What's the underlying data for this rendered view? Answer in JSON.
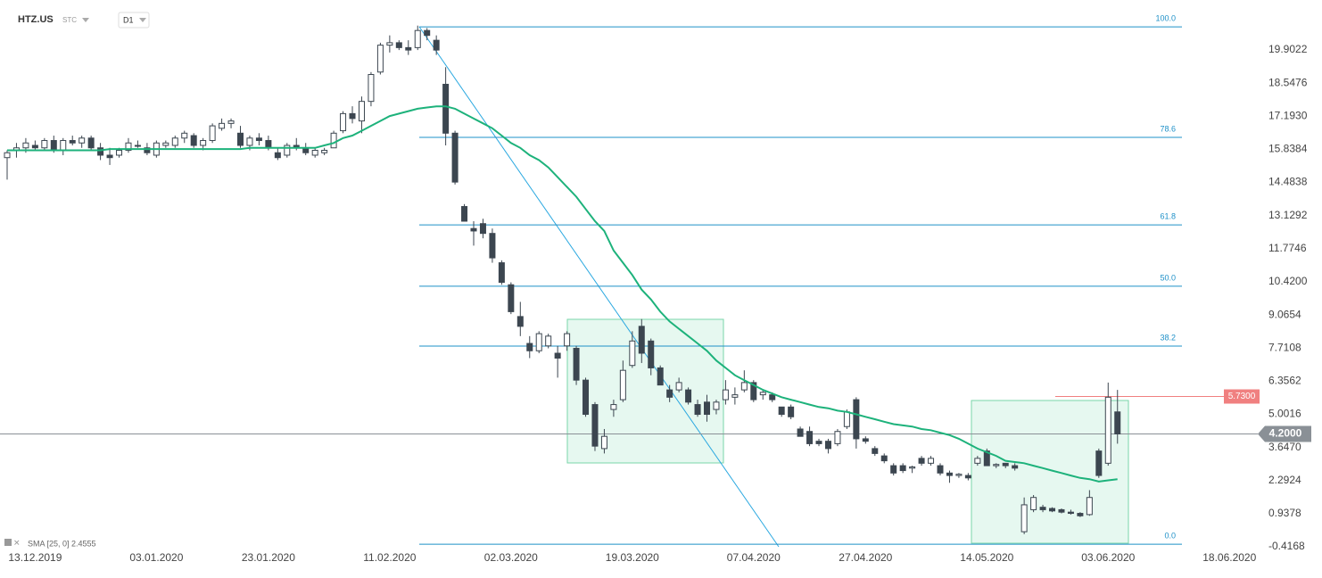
{
  "chart_data": {
    "type": "candlestick",
    "symbol": "HTZ.US",
    "symbol_type": "STC",
    "interval": "D1",
    "categories": [
      null,
      null,
      null,
      "13.12.2019",
      null,
      null,
      null,
      null,
      null,
      null,
      null,
      null,
      null,
      null,
      null,
      null,
      "03.01.2020",
      null,
      null,
      null,
      null,
      null,
      null,
      null,
      null,
      null,
      null,
      null,
      "23.01.2020",
      null,
      null,
      null,
      null,
      null,
      null,
      null,
      null,
      null,
      null,
      null,
      null,
      "11.02.2020",
      null,
      null,
      null,
      null,
      null,
      null,
      null,
      null,
      null,
      null,
      null,
      null,
      "02.03.2020",
      null,
      null,
      null,
      null,
      null,
      null,
      null,
      null,
      null,
      null,
      null,
      null,
      "19.03.2020",
      null,
      null,
      null,
      null,
      null,
      null,
      null,
      null,
      null,
      null,
      null,
      null,
      "07.04.2020",
      null,
      null,
      null,
      null,
      null,
      null,
      null,
      null,
      null,
      null,
      null,
      "27.04.2020",
      null,
      null,
      null,
      null,
      null,
      null,
      null,
      null,
      null,
      null,
      null,
      null,
      "14.05.2020",
      null,
      null,
      null,
      null,
      null,
      null,
      null,
      null,
      null,
      null,
      null,
      null,
      "03.06.2020",
      null,
      null,
      null,
      null,
      null,
      null,
      null,
      null,
      null,
      null,
      null,
      null,
      "18.06.2020"
    ],
    "ohlc": [
      [
        15.5,
        15.8,
        14.6,
        15.7
      ],
      [
        15.8,
        16.1,
        15.5,
        15.9
      ],
      [
        15.9,
        16.3,
        15.7,
        16.1
      ],
      [
        16.0,
        16.2,
        15.8,
        15.9
      ],
      [
        15.9,
        16.3,
        15.8,
        16.2
      ],
      [
        16.2,
        16.4,
        15.7,
        15.8
      ],
      [
        15.8,
        16.3,
        15.6,
        16.2
      ],
      [
        16.2,
        16.4,
        16.0,
        16.1
      ],
      [
        16.1,
        16.4,
        15.9,
        16.3
      ],
      [
        16.3,
        16.4,
        15.8,
        15.9
      ],
      [
        15.9,
        16.1,
        15.4,
        15.6
      ],
      [
        15.6,
        15.9,
        15.2,
        15.5
      ],
      [
        15.6,
        15.9,
        15.5,
        15.8
      ],
      [
        15.8,
        16.3,
        15.7,
        16.1
      ],
      [
        16.0,
        16.2,
        15.9,
        16.0
      ],
      [
        15.9,
        16.1,
        15.6,
        15.7
      ],
      [
        15.6,
        16.2,
        15.5,
        16.1
      ],
      [
        16.0,
        16.2,
        15.9,
        16.1
      ],
      [
        16.0,
        16.4,
        15.9,
        16.3
      ],
      [
        16.3,
        16.6,
        16.1,
        16.5
      ],
      [
        16.4,
        16.5,
        15.9,
        16.0
      ],
      [
        16.0,
        16.3,
        15.8,
        16.2
      ],
      [
        16.2,
        16.9,
        16.1,
        16.8
      ],
      [
        16.7,
        17.1,
        16.6,
        16.9
      ],
      [
        16.9,
        17.1,
        16.7,
        17.0
      ],
      [
        16.5,
        16.8,
        15.9,
        16.0
      ],
      [
        16.0,
        16.4,
        15.8,
        16.3
      ],
      [
        16.3,
        16.5,
        16.0,
        16.2
      ],
      [
        16.2,
        16.4,
        15.8,
        15.9
      ],
      [
        15.7,
        15.9,
        15.4,
        15.5
      ],
      [
        15.6,
        16.1,
        15.5,
        16.0
      ],
      [
        16.0,
        16.3,
        15.8,
        15.9
      ],
      [
        15.9,
        16.1,
        15.6,
        15.7
      ],
      [
        15.6,
        15.9,
        15.5,
        15.8
      ],
      [
        15.7,
        15.9,
        15.6,
        15.8
      ],
      [
        15.9,
        16.6,
        15.9,
        16.5
      ],
      [
        16.6,
        17.4,
        16.5,
        17.3
      ],
      [
        17.3,
        17.6,
        16.9,
        17.1
      ],
      [
        17.0,
        18.0,
        16.5,
        17.8
      ],
      [
        17.8,
        19.0,
        17.6,
        18.9
      ],
      [
        19.0,
        20.2,
        18.9,
        20.1
      ],
      [
        20.1,
        20.5,
        19.8,
        20.2
      ],
      [
        20.2,
        20.3,
        19.9,
        20.0
      ],
      [
        20.0,
        20.3,
        19.7,
        19.9
      ],
      [
        20.0,
        20.9,
        19.9,
        20.7
      ],
      [
        20.7,
        20.8,
        20.3,
        20.5
      ],
      [
        20.3,
        20.5,
        19.7,
        19.9
      ],
      [
        18.5,
        19.2,
        16.0,
        16.5
      ],
      [
        16.5,
        16.6,
        14.4,
        14.5
      ],
      [
        13.5,
        13.6,
        12.9,
        12.9
      ],
      [
        12.6,
        12.9,
        11.9,
        12.5
      ],
      [
        12.8,
        13.0,
        12.2,
        12.4
      ],
      [
        12.4,
        12.6,
        11.2,
        11.4
      ],
      [
        11.2,
        11.3,
        10.3,
        10.4
      ],
      [
        10.3,
        10.4,
        9.1,
        9.2
      ],
      [
        9.0,
        9.6,
        8.2,
        8.6
      ],
      [
        7.9,
        8.2,
        7.3,
        7.6
      ],
      [
        7.6,
        8.4,
        7.5,
        8.3
      ],
      [
        7.8,
        8.3,
        7.7,
        8.2
      ],
      [
        7.5,
        7.8,
        6.5,
        7.3
      ],
      [
        7.8,
        8.4,
        7.6,
        8.3
      ],
      [
        7.7,
        7.8,
        6.2,
        6.4
      ],
      [
        6.4,
        6.5,
        4.9,
        5.0
      ],
      [
        5.4,
        5.5,
        3.5,
        3.7
      ],
      [
        3.6,
        4.4,
        3.4,
        4.1
      ],
      [
        5.2,
        5.6,
        4.9,
        5.4
      ],
      [
        5.6,
        7.2,
        5.5,
        6.8
      ],
      [
        7.0,
        8.4,
        6.9,
        8.0
      ],
      [
        8.6,
        8.9,
        7.1,
        7.5
      ],
      [
        8.0,
        8.1,
        6.6,
        6.9
      ],
      [
        6.9,
        7.0,
        6.2,
        6.2
      ],
      [
        6.0,
        6.2,
        5.5,
        5.7
      ],
      [
        6.0,
        6.5,
        5.9,
        6.3
      ],
      [
        6.0,
        6.1,
        5.4,
        5.5
      ],
      [
        5.4,
        5.6,
        4.9,
        5.0
      ],
      [
        5.5,
        5.8,
        4.7,
        5.0
      ],
      [
        5.2,
        5.6,
        5.0,
        5.5
      ],
      [
        5.6,
        6.4,
        5.4,
        6.0
      ],
      [
        5.7,
        6.1,
        5.4,
        5.8
      ],
      [
        6.0,
        6.8,
        5.9,
        6.3
      ],
      [
        6.3,
        6.4,
        5.5,
        5.6
      ],
      [
        5.8,
        6.0,
        5.6,
        5.9
      ],
      [
        5.8,
        5.9,
        5.5,
        5.6
      ],
      [
        5.3,
        5.3,
        4.9,
        5.0
      ],
      [
        5.3,
        5.4,
        4.8,
        4.9
      ],
      [
        4.4,
        4.5,
        4.1,
        4.1
      ],
      [
        4.3,
        4.5,
        3.7,
        3.8
      ],
      [
        3.9,
        4.0,
        3.7,
        3.8
      ],
      [
        3.9,
        4.0,
        3.4,
        3.6
      ],
      [
        3.8,
        4.4,
        3.7,
        4.3
      ],
      [
        4.5,
        5.2,
        4.4,
        5.1
      ],
      [
        5.6,
        5.7,
        3.6,
        4.0
      ],
      [
        4.0,
        4.1,
        3.8,
        3.9
      ],
      [
        3.6,
        3.7,
        3.3,
        3.4
      ],
      [
        3.3,
        3.4,
        3.0,
        3.1
      ],
      [
        2.9,
        3.0,
        2.5,
        2.6
      ],
      [
        2.9,
        3.0,
        2.6,
        2.7
      ],
      [
        2.8,
        2.9,
        2.6,
        2.85
      ],
      [
        3.2,
        3.3,
        2.9,
        3.0
      ],
      [
        3.0,
        3.3,
        2.9,
        3.2
      ],
      [
        2.9,
        3.0,
        2.5,
        2.6
      ],
      [
        2.6,
        2.7,
        2.2,
        2.5
      ],
      [
        2.5,
        2.6,
        2.4,
        2.55
      ],
      [
        2.5,
        2.6,
        2.3,
        2.4
      ],
      [
        3.0,
        3.3,
        2.9,
        3.2
      ],
      [
        3.5,
        3.6,
        2.9,
        2.9
      ],
      [
        2.9,
        3.0,
        2.8,
        2.95
      ],
      [
        3.0,
        3.0,
        2.8,
        2.9
      ],
      [
        2.9,
        3.0,
        2.7,
        2.8
      ],
      [
        0.2,
        1.6,
        0.1,
        1.3
      ],
      [
        1.1,
        1.7,
        1.0,
        1.6
      ],
      [
        1.2,
        1.3,
        1.0,
        1.1
      ],
      [
        1.15,
        1.2,
        1.0,
        1.05
      ],
      [
        1.1,
        1.15,
        0.95,
        1.0
      ],
      [
        1.0,
        1.1,
        0.9,
        0.95
      ],
      [
        0.95,
        1.0,
        0.8,
        0.85
      ],
      [
        0.9,
        1.9,
        0.85,
        1.6
      ],
      [
        3.5,
        3.6,
        2.4,
        2.5
      ],
      [
        3.0,
        6.3,
        2.9,
        5.7
      ],
      [
        5.1,
        6.0,
        3.8,
        4.2
      ],
      null,
      null,
      null,
      null,
      null,
      null,
      null,
      null,
      null,
      null,
      null,
      null
    ],
    "up_color": "#ffffff",
    "down_color": "#3c4650",
    "wick_color": "#3c4650",
    "sma": {
      "label": "SMA [25, 0] 2.4555",
      "color": "#1db27b",
      "values": [
        15.8,
        15.8,
        15.8,
        15.8,
        15.8,
        15.8,
        15.8,
        15.8,
        15.8,
        15.8,
        15.8,
        15.85,
        15.85,
        15.85,
        15.85,
        15.85,
        15.85,
        15.85,
        15.85,
        15.85,
        15.85,
        15.85,
        15.85,
        15.85,
        15.85,
        15.85,
        15.9,
        15.9,
        15.9,
        15.9,
        15.9,
        15.9,
        15.9,
        15.9,
        16.0,
        16.1,
        16.3,
        16.4,
        16.6,
        16.8,
        17.0,
        17.2,
        17.3,
        17.4,
        17.5,
        17.55,
        17.6,
        17.6,
        17.5,
        17.3,
        17.1,
        16.9,
        16.7,
        16.4,
        16.1,
        15.9,
        15.6,
        15.4,
        15.1,
        14.7,
        14.3,
        13.9,
        13.4,
        12.9,
        12.5,
        11.7,
        11.2,
        10.7,
        10.1,
        9.7,
        9.2,
        8.8,
        8.5,
        8.2,
        7.9,
        7.6,
        7.2,
        6.9,
        6.6,
        6.4,
        6.2,
        6.0,
        5.85,
        5.7,
        5.6,
        5.5,
        5.4,
        5.3,
        5.25,
        5.15,
        5.1,
        5.0,
        4.9,
        4.8,
        4.7,
        4.6,
        4.55,
        4.5,
        4.4,
        4.35,
        4.25,
        4.15,
        4.0,
        3.8,
        3.6,
        3.45,
        3.3,
        3.1,
        3.05,
        3.0,
        2.9,
        2.8,
        2.7,
        2.6,
        2.5,
        2.4,
        2.35,
        2.25,
        2.3,
        2.35,
        null,
        null,
        null,
        null,
        null,
        null,
        null,
        null,
        null,
        null,
        null,
        null
      ]
    },
    "ylim": [
      -0.672,
      21.947
    ],
    "yticks": [
      19.9022,
      18.5476,
      {
        "value": 17.193,
        "label": "17.1930"
      },
      15.8384,
      14.4838,
      13.1292,
      11.7746,
      {
        "value": 10.42,
        "label": "10.4200"
      },
      9.0654,
      7.7108,
      6.3562,
      5.0016,
      {
        "value": 3.647,
        "label": "3.6470"
      },
      2.2924,
      0.9378,
      -0.4168
    ],
    "fibonacci": {
      "color": "#1e90c8",
      "levels": [
        {
          "label": "100.0",
          "value": 20.85
        },
        {
          "label": "78.6",
          "value": 16.33
        },
        {
          "label": "61.8",
          "value": 12.75
        },
        {
          "label": "50.0",
          "value": 10.24
        },
        {
          "label": "38.2",
          "value": 7.79
        },
        {
          "label": "0.0",
          "value": -0.31
        }
      ]
    },
    "price_lines": [
      {
        "value": 5.73,
        "label": "5.7300",
        "color": "#f08080"
      },
      {
        "value": 4.2,
        "label": "4.2000",
        "color": "#8a9096"
      }
    ]
  }
}
